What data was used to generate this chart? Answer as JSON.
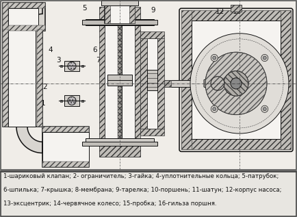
{
  "background_color": "#f2f0ec",
  "legend_text_line1": "1-шариковый клапан; 2- ограничитель; 3-гайка; 4-уплотнительные кольца; 5-патрубок;",
  "legend_text_line2": "6-шпилька; 7-крышка; 8-мембрана; 9-тарелка; 10-поршень; 11-шатун; 12-корпус насоса;",
  "legend_text_line3": "13-эксцентрик; 14-червячное колесо; 15-пробка; 16-гильза поршня.",
  "fig_width": 4.34,
  "fig_height": 3.17,
  "dpi": 100,
  "lc": "#1a1a1a",
  "label_fontsize": 6.2,
  "number_fontsize": 7.5
}
